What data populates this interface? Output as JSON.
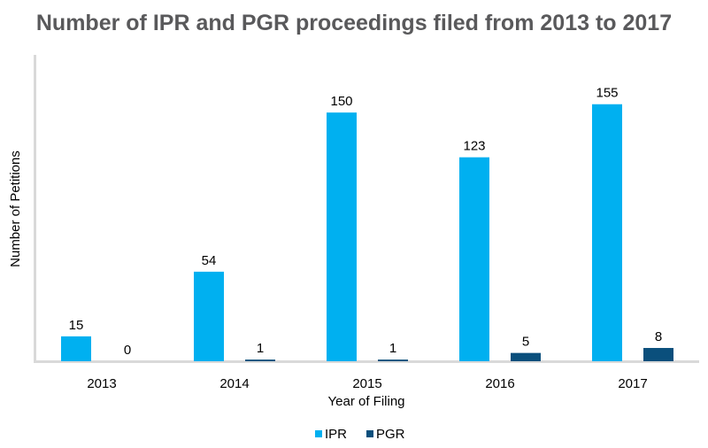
{
  "chart_data": {
    "type": "bar",
    "title": "Number of IPR and PGR proceedings filed from 2013 to 2017",
    "xlabel": "Year of Filing",
    "ylabel": "Number of Petitions",
    "categories": [
      "2013",
      "2014",
      "2015",
      "2016",
      "2017"
    ],
    "series": [
      {
        "name": "IPR",
        "color": "#00b0f0",
        "values": [
          15,
          54,
          150,
          123,
          155
        ]
      },
      {
        "name": "PGR",
        "color": "#0a4f7c",
        "values": [
          0,
          1,
          1,
          5,
          8
        ]
      }
    ],
    "ylim": [
      0,
      180
    ],
    "grid": false,
    "legend_position": "bottom"
  }
}
